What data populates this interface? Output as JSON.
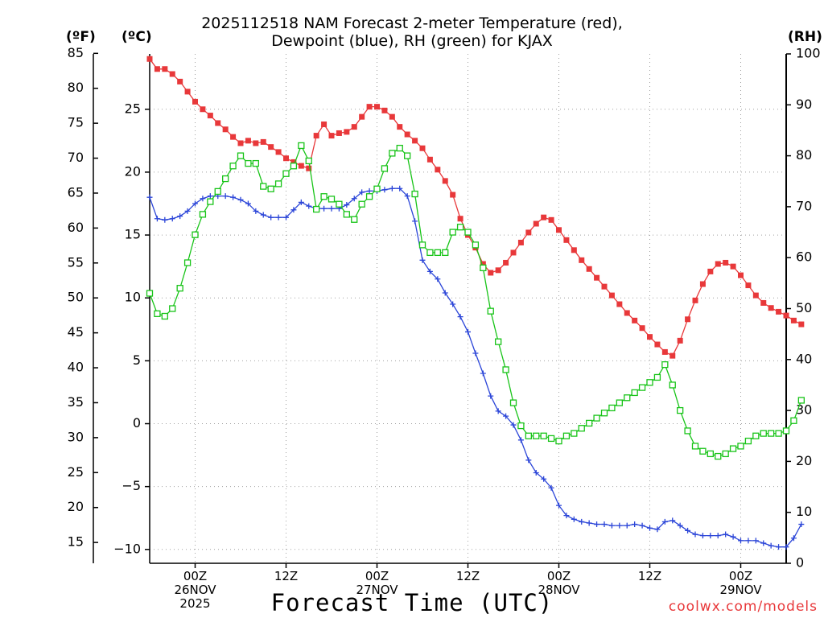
{
  "chart_data": {
    "type": "line",
    "title_line1": "2025112518 NAM Forecast 2-meter Temperature (red),",
    "title_line2": "Dewpoint (blue), RH (green) for KJAX",
    "unit_f": "(ºF)",
    "unit_c": "(ºC)",
    "unit_rh": "(RH)",
    "xlabel": "Forecast Time (UTC)",
    "credit": "coolwx.com/models",
    "x_hours_start": 0,
    "x_hours_end": 84,
    "x_ticks": [
      {
        "hour": 6,
        "lines": [
          "00Z",
          "26NOV",
          "2025"
        ]
      },
      {
        "hour": 18,
        "lines": [
          "12Z"
        ]
      },
      {
        "hour": 30,
        "lines": [
          "00Z",
          "27NOV"
        ]
      },
      {
        "hour": 42,
        "lines": [
          "12Z"
        ]
      },
      {
        "hour": 54,
        "lines": [
          "00Z",
          "28NOV"
        ]
      },
      {
        "hour": 66,
        "lines": [
          "12Z"
        ]
      },
      {
        "hour": 78,
        "lines": [
          "00Z",
          "29NOV"
        ]
      }
    ],
    "y_celsius_ticks": [
      -10,
      -5,
      0,
      5,
      10,
      15,
      20,
      25
    ],
    "y_celsius_range": [
      -11.1,
      29.4
    ],
    "y_fahrenheit_ticks": [
      15,
      20,
      25,
      30,
      35,
      40,
      45,
      50,
      55,
      60,
      65,
      70,
      75,
      80,
      85
    ],
    "y_rh_ticks": [
      0,
      10,
      20,
      30,
      40,
      50,
      60,
      70,
      80,
      90,
      100
    ],
    "y_rh_range": [
      0,
      100
    ],
    "series": [
      {
        "name": "2-meter Temperature",
        "axis": "celsius",
        "color": "#e8383a",
        "marker": "filled-square",
        "values": [
          29.0,
          28.2,
          28.2,
          27.8,
          27.2,
          26.4,
          25.6,
          25.0,
          24.5,
          23.9,
          23.4,
          22.8,
          22.3,
          22.5,
          22.3,
          22.4,
          22.0,
          21.6,
          21.1,
          20.8,
          20.5,
          20.3,
          22.9,
          23.8,
          22.9,
          23.1,
          23.2,
          23.6,
          24.4,
          25.2,
          25.2,
          24.9,
          24.4,
          23.6,
          23.0,
          22.5,
          21.9,
          21.0,
          20.2,
          19.3,
          18.2,
          16.3,
          15.0,
          14.0,
          12.7,
          12.0,
          12.2,
          12.8,
          13.6,
          14.4,
          15.2,
          15.9,
          16.4,
          16.2,
          15.4,
          14.6,
          13.8,
          13.0,
          12.3,
          11.6,
          10.9,
          10.2,
          9.5,
          8.8,
          8.2,
          7.6,
          6.9,
          6.3,
          5.7,
          5.4,
          6.6,
          8.3,
          9.8,
          11.1,
          12.1,
          12.7,
          12.8,
          12.5,
          11.8,
          11.0,
          10.2,
          9.6,
          9.2,
          8.9,
          8.6,
          8.2,
          7.9
        ]
      },
      {
        "name": "Dewpoint",
        "axis": "celsius",
        "color": "#2b45d8",
        "marker": "plus",
        "values": [
          18.0,
          16.3,
          16.2,
          16.3,
          16.5,
          16.9,
          17.5,
          17.9,
          18.1,
          18.1,
          18.1,
          18.0,
          17.8,
          17.5,
          16.9,
          16.6,
          16.4,
          16.4,
          16.4,
          17.0,
          17.6,
          17.3,
          17.1,
          17.1,
          17.1,
          17.1,
          17.4,
          17.9,
          18.4,
          18.5,
          18.5,
          18.6,
          18.7,
          18.7,
          18.1,
          16.1,
          13.0,
          12.1,
          11.5,
          10.4,
          9.5,
          8.5,
          7.3,
          5.6,
          4.0,
          2.2,
          1.0,
          0.6,
          -0.1,
          -1.3,
          -2.9,
          -3.9,
          -4.4,
          -5.1,
          -6.5,
          -7.3,
          -7.6,
          -7.8,
          -7.9,
          -8.0,
          -8.0,
          -8.1,
          -8.1,
          -8.1,
          -8.0,
          -8.1,
          -8.3,
          -8.4,
          -7.8,
          -7.7,
          -8.1,
          -8.5,
          -8.8,
          -8.9,
          -8.9,
          -8.9,
          -8.8,
          -9.0,
          -9.3,
          -9.3,
          -9.3,
          -9.5,
          -9.7,
          -9.8,
          -9.8,
          -9.1,
          -8.0
        ]
      },
      {
        "name": "RH",
        "axis": "rh",
        "color": "#18c418",
        "marker": "open-square",
        "values": [
          53,
          49,
          48.5,
          50,
          54,
          59,
          64.5,
          68.5,
          71,
          73,
          75.5,
          78,
          80,
          78.5,
          78.5,
          74,
          73.5,
          74.5,
          76.5,
          78,
          82,
          79,
          69.5,
          72,
          71.5,
          70.5,
          68.5,
          67.5,
          70.5,
          72,
          73.5,
          77.5,
          80.5,
          81.5,
          80,
          72.5,
          62.5,
          61,
          61,
          61,
          65,
          66,
          65,
          62.5,
          58,
          49.5,
          43.5,
          38,
          31.5,
          27,
          25,
          25,
          25,
          24.5,
          24,
          25,
          25.5,
          26.5,
          27.5,
          28.5,
          29.5,
          30.5,
          31.5,
          32.5,
          33.5,
          34.5,
          35.5,
          36.5,
          39,
          35,
          30,
          26,
          23,
          22,
          21.5,
          21,
          21.5,
          22.5,
          23,
          24,
          25,
          25.5,
          25.5,
          25.5,
          26,
          28,
          32
        ]
      }
    ]
  }
}
